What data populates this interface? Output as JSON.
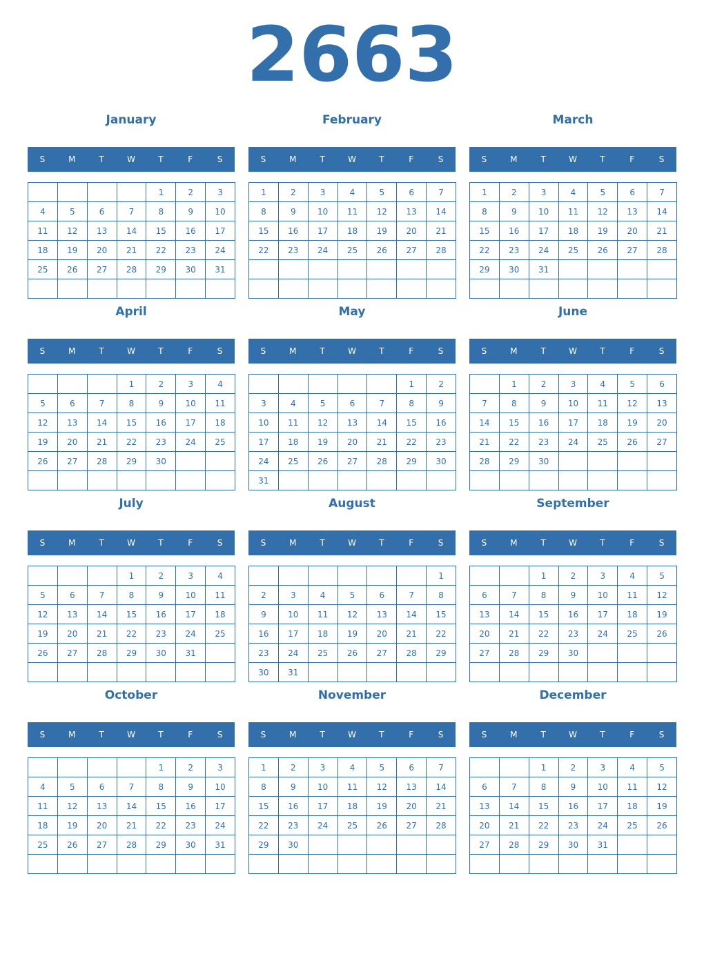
{
  "year": "2663",
  "weekdays": [
    "S",
    "M",
    "T",
    "W",
    "T",
    "F",
    "S"
  ],
  "accent": "#336fab",
  "months": [
    {
      "name": "January",
      "start": 4,
      "days": 31
    },
    {
      "name": "February",
      "start": 0,
      "days": 28
    },
    {
      "name": "March",
      "start": 0,
      "days": 31
    },
    {
      "name": "April",
      "start": 3,
      "days": 30
    },
    {
      "name": "May",
      "start": 5,
      "days": 31
    },
    {
      "name": "June",
      "start": 1,
      "days": 30
    },
    {
      "name": "July",
      "start": 3,
      "days": 31
    },
    {
      "name": "August",
      "start": 6,
      "days": 31
    },
    {
      "name": "September",
      "start": 2,
      "days": 30
    },
    {
      "name": "October",
      "start": 4,
      "days": 31
    },
    {
      "name": "November",
      "start": 0,
      "days": 30
    },
    {
      "name": "December",
      "start": 2,
      "days": 31
    }
  ]
}
